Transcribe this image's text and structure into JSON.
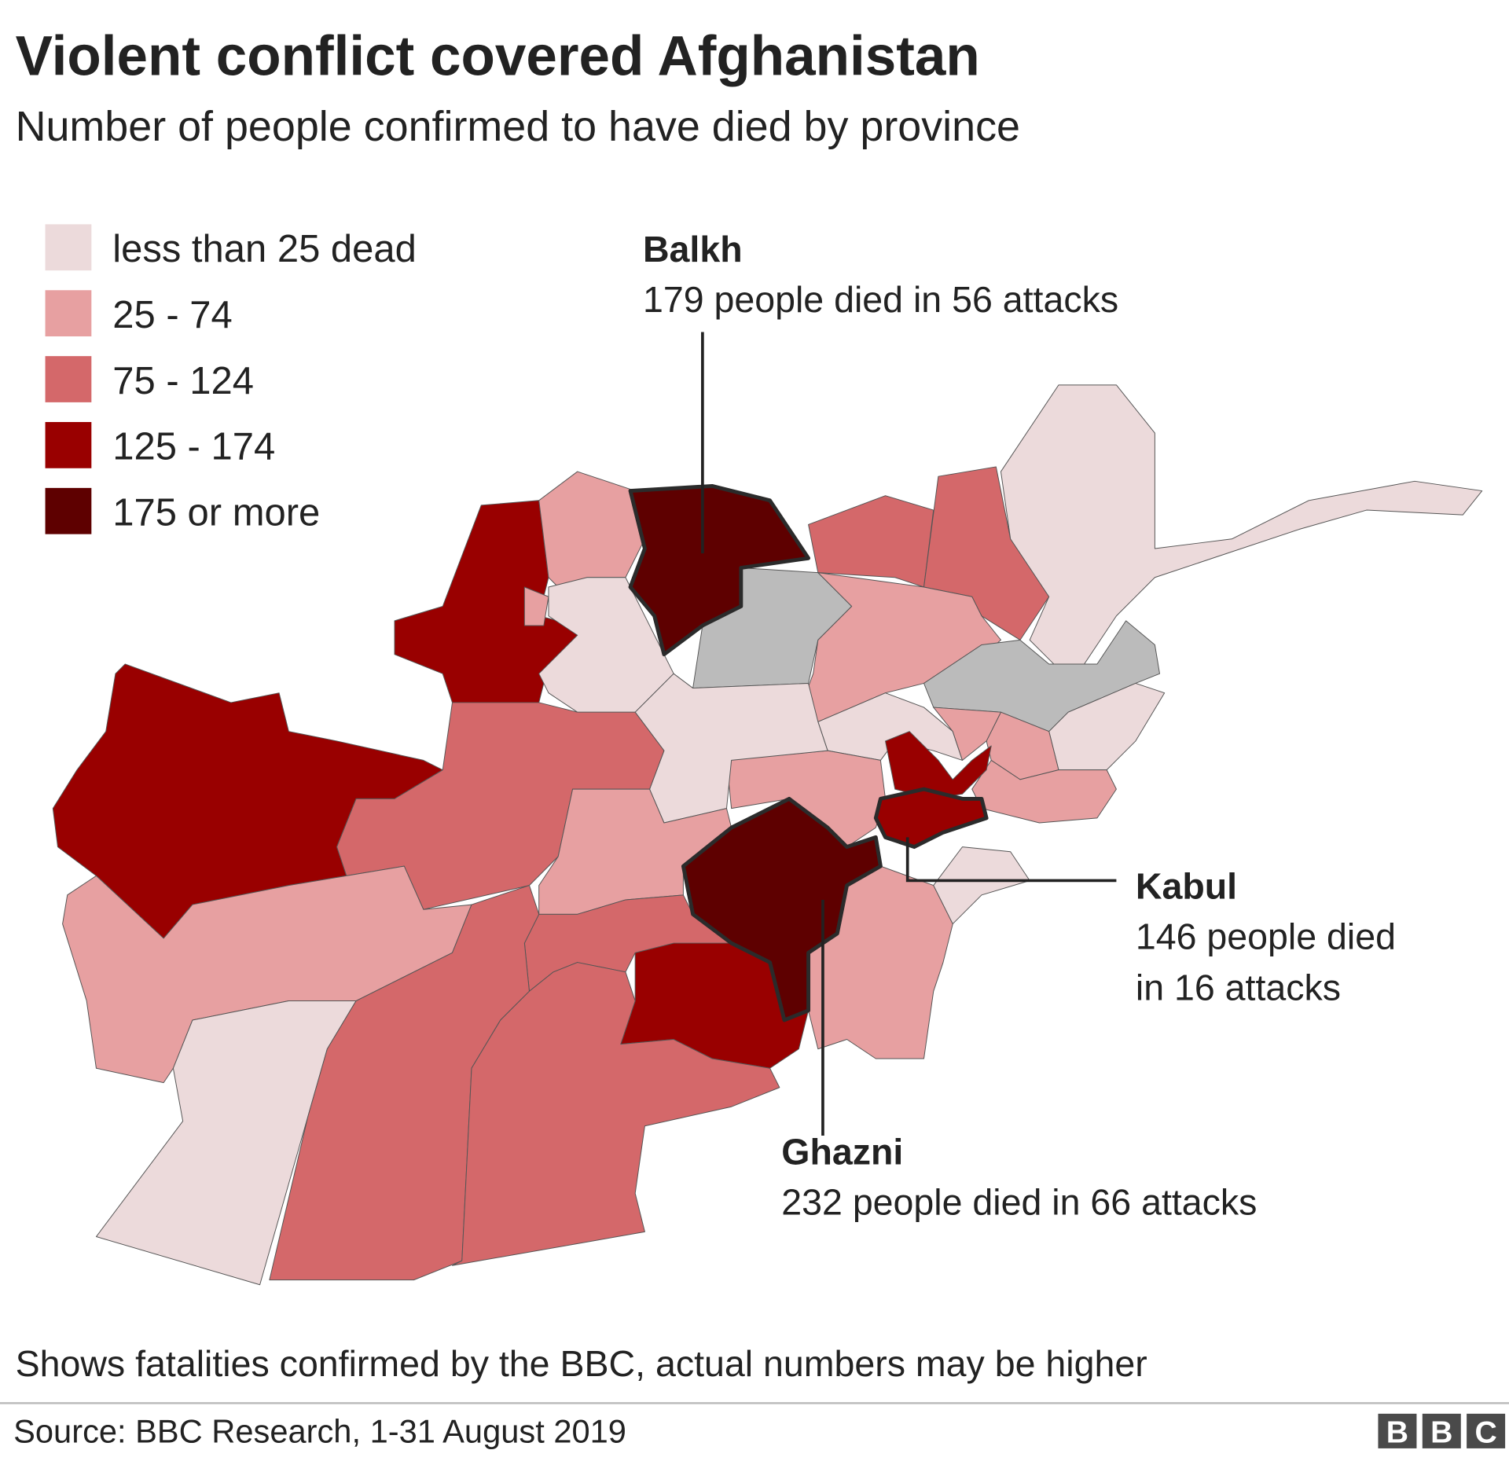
{
  "chart_data": {
    "type": "choropleth",
    "title": "Violent conflict covered Afghanistan",
    "subtitle": "Number of people confirmed to have died by province",
    "legend": [
      {
        "label": "less than 25 dead",
        "color": "#ecdadb"
      },
      {
        "label": "25 - 74",
        "color": "#e7a0a1"
      },
      {
        "label": "75 - 124",
        "color": "#d4686a"
      },
      {
        "label": "125 - 174",
        "color": "#990000"
      },
      {
        "label": "175 or more",
        "color": "#5e0000"
      }
    ],
    "annotations": [
      {
        "title": "Balkh",
        "lines": [
          "179 people died in 56 attacks"
        ]
      },
      {
        "title": "Kabul",
        "lines": [
          "146 people died",
          "in 16 attacks"
        ]
      },
      {
        "title": "Ghazni",
        "lines": [
          "232 people died in 66 attacks"
        ]
      }
    ],
    "note": "Shows fatalities confirmed by the BBC, actual numbers may be higher",
    "source": "Source: BBC Research, 1-31 August 2019",
    "logo": [
      "B",
      "B",
      "C"
    ]
  }
}
